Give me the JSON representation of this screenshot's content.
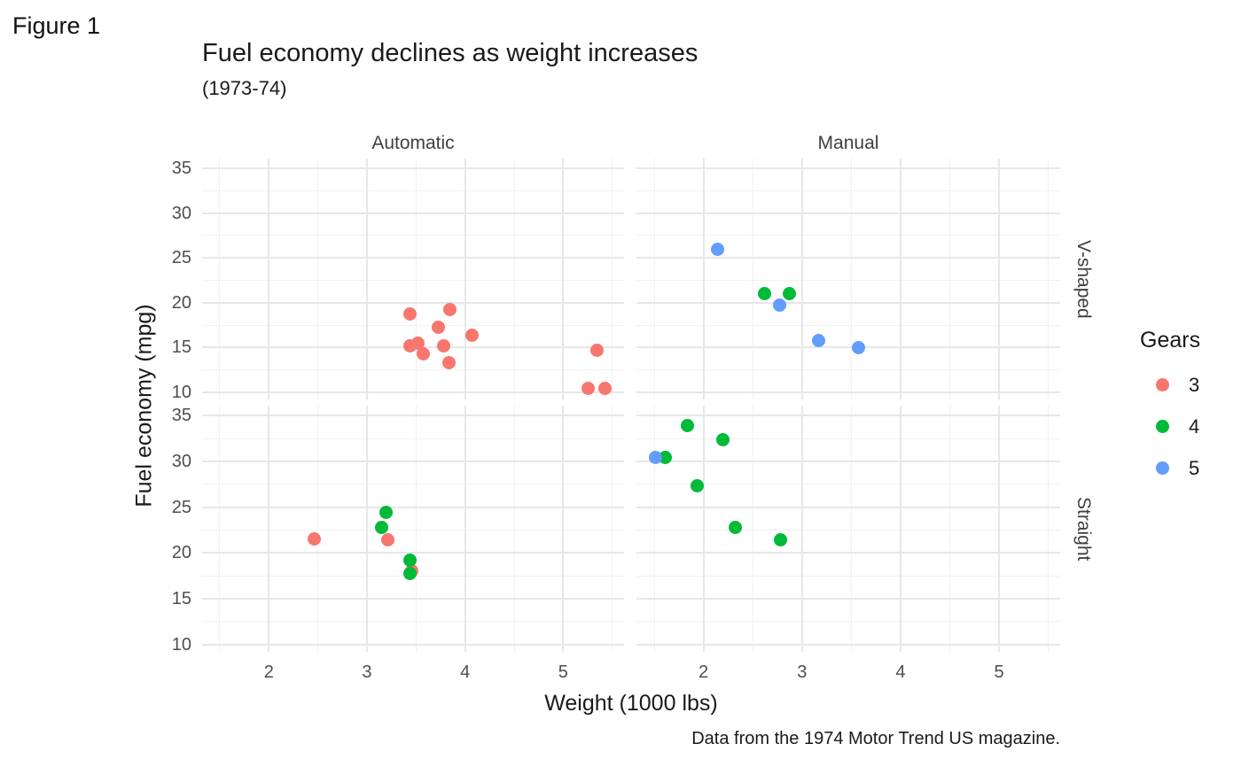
{
  "figure_label": "Figure 1",
  "title": "Fuel economy declines as weight increases",
  "subtitle": "(1973-74)",
  "caption": "Data from the 1974 Motor Trend US magazine.",
  "x_axis_title": "Weight (1000 lbs)",
  "y_axis_title": "Fuel economy (mpg)",
  "facets": {
    "cols": [
      "Automatic",
      "Manual"
    ],
    "rows": [
      "V-shaped",
      "Straight"
    ]
  },
  "legend": {
    "title": "Gears",
    "items": [
      {
        "label": "3",
        "color": "#F8766D"
      },
      {
        "label": "4",
        "color": "#00BA38"
      },
      {
        "label": "5",
        "color": "#619CFF"
      }
    ]
  },
  "chart_data": {
    "type": "scatter",
    "title": "Fuel economy declines as weight increases",
    "subtitle": "(1973-74)",
    "xlabel": "Weight (1000 lbs)",
    "ylabel": "Fuel economy (mpg)",
    "xlim": [
      1.32,
      5.62
    ],
    "ylim": [
      9.2,
      36.1
    ],
    "x_ticks": [
      2,
      3,
      4,
      5
    ],
    "y_ticks": [
      10,
      15,
      20,
      25,
      30,
      35
    ],
    "x_minor_ticks": [
      1.5,
      2.5,
      3.5,
      4.5,
      5.5
    ],
    "y_minor_ticks": [
      12.5,
      17.5,
      22.5,
      27.5,
      32.5
    ],
    "grid": "major+minor on white, no axis lines, no tick marks",
    "legend_title": "Gears",
    "legend_position": "right",
    "series_colors": {
      "3": "#F8766D",
      "4": "#00BA38",
      "5": "#619CFF"
    },
    "facet_col_labels": [
      "Automatic",
      "Manual"
    ],
    "facet_row_labels": [
      "V-shaped",
      "Straight"
    ],
    "point_format": [
      "weight_1000lbs",
      "mpg",
      "gears"
    ],
    "panels": [
      {
        "col": "Automatic",
        "row": "V-shaped",
        "col_index": 0,
        "row_index": 0,
        "points": [
          [
            3.44,
            18.7,
            3
          ],
          [
            3.57,
            14.3,
            3
          ],
          [
            4.07,
            16.4,
            3
          ],
          [
            3.73,
            17.3,
            3
          ],
          [
            3.78,
            15.2,
            3
          ],
          [
            5.25,
            10.4,
            3
          ],
          [
            5.424,
            10.4,
            3
          ],
          [
            5.345,
            14.7,
            3
          ],
          [
            3.52,
            15.5,
            3
          ],
          [
            3.435,
            15.2,
            3
          ],
          [
            3.84,
            13.3,
            3
          ],
          [
            3.845,
            19.2,
            3
          ]
        ]
      },
      {
        "col": "Manual",
        "row": "V-shaped",
        "col_index": 1,
        "row_index": 0,
        "points": [
          [
            2.62,
            21.0,
            4
          ],
          [
            2.875,
            21.0,
            4
          ],
          [
            2.14,
            26.0,
            5
          ],
          [
            3.17,
            15.8,
            5
          ],
          [
            2.77,
            19.7,
            5
          ],
          [
            3.57,
            15.0,
            5
          ]
        ]
      },
      {
        "col": "Automatic",
        "row": "Straight",
        "col_index": 0,
        "row_index": 1,
        "points": [
          [
            3.215,
            21.4,
            3
          ],
          [
            3.46,
            18.1,
            3
          ],
          [
            3.19,
            24.4,
            4
          ],
          [
            3.15,
            22.8,
            4
          ],
          [
            3.44,
            19.2,
            4
          ],
          [
            3.44,
            17.8,
            4
          ],
          [
            2.465,
            21.5,
            3
          ]
        ]
      },
      {
        "col": "Manual",
        "row": "Straight",
        "col_index": 1,
        "row_index": 1,
        "points": [
          [
            2.32,
            22.8,
            4
          ],
          [
            2.2,
            32.4,
            4
          ],
          [
            1.615,
            30.4,
            4
          ],
          [
            1.835,
            33.9,
            4
          ],
          [
            1.935,
            27.3,
            4
          ],
          [
            1.513,
            30.4,
            5
          ],
          [
            2.78,
            21.4,
            4
          ]
        ]
      }
    ]
  }
}
